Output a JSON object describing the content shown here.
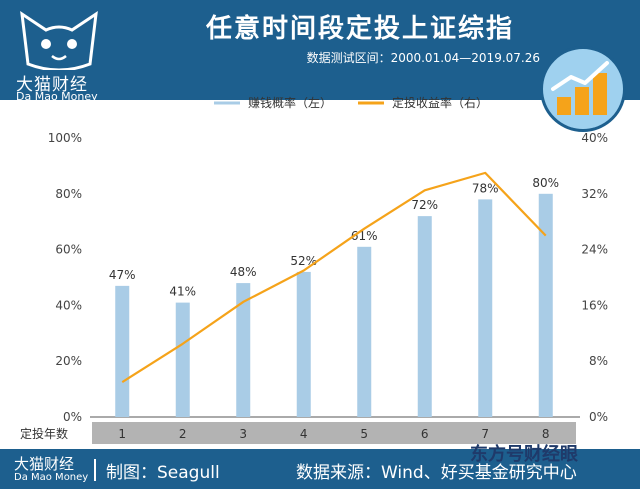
{
  "brand": {
    "logo_cn": "大猫财经",
    "logo_en": "Da Mao Money",
    "icon": "cat-face-icon"
  },
  "header": {
    "title": "任意时间段定投上证综指",
    "period": "数据测试区间：2000.01.04—2019.07.26",
    "badge_icon": "rising-bars-icon"
  },
  "footer": {
    "logo_cn": "大猫财经",
    "logo_en": "Da Mao Money",
    "maker": "制图：Seagull",
    "source": "数据来源：Wind、好买基金研究中心"
  },
  "watermark": "东方号财经眼",
  "chart_data": {
    "type": "bar",
    "categories": [
      "1",
      "2",
      "3",
      "4",
      "5",
      "6",
      "7",
      "8"
    ],
    "xlabel": "定投年数",
    "series": [
      {
        "name": "赚钱概率（左）",
        "type": "bar",
        "axis": "left",
        "values": [
          47,
          41,
          48,
          52,
          61,
          72,
          78,
          80
        ],
        "labels": [
          "47%",
          "41%",
          "48%",
          "52%",
          "61%",
          "72%",
          "78%",
          "80%"
        ],
        "color": "#a9cce6"
      },
      {
        "name": "定投收益率（右）",
        "type": "line",
        "axis": "right",
        "values": [
          5,
          10.5,
          16.5,
          21,
          27,
          32.5,
          35,
          26
        ],
        "color": "#f5a31a"
      }
    ],
    "ylim_left": [
      0,
      100
    ],
    "yticks_left": [
      "0%",
      "20%",
      "40%",
      "60%",
      "80%",
      "100%"
    ],
    "ylim_right": [
      0,
      40
    ],
    "yticks_right": [
      "0%",
      "8%",
      "16%",
      "24%",
      "32%",
      "40%"
    ],
    "legend_position": "top-center",
    "grid": false
  },
  "colors": {
    "header_bg": "#1d5f8e",
    "bar": "#a9cce6",
    "line": "#f5a31a",
    "axis_strip": "#b3b3b3"
  }
}
